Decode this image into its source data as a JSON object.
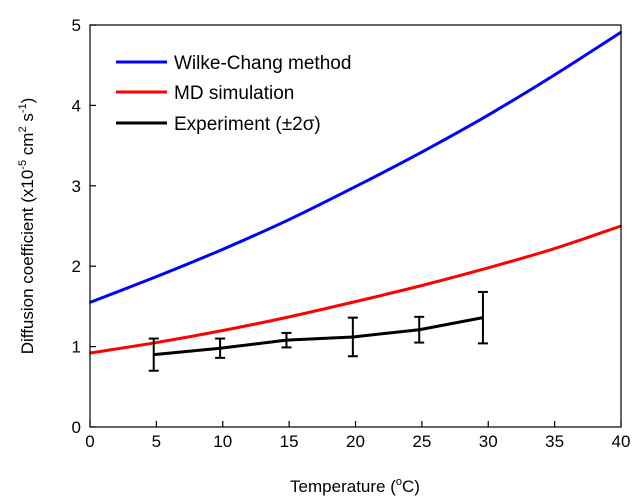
{
  "chart_data": {
    "type": "line",
    "title": "",
    "xlabel": {
      "pre": "Temperature (",
      "sup": "o",
      "post": "C)"
    },
    "ylabel": {
      "a": "Diffusion coefficient (x10",
      "sup1": "-5",
      "b": " cm",
      "sup2": "2",
      "c": " s",
      "sup3": "-1",
      "d": ")"
    },
    "xlim": [
      0,
      40
    ],
    "ylim": [
      0,
      5
    ],
    "xticks": [
      0,
      5,
      10,
      15,
      20,
      25,
      30,
      35,
      40
    ],
    "yticks": [
      0,
      1,
      2,
      3,
      4,
      5
    ],
    "legend_position": "top-left",
    "series": [
      {
        "name": "Wilke-Chang method",
        "color": "#0000ff",
        "x": [
          0,
          5,
          10,
          15,
          20,
          25,
          30,
          35,
          40
        ],
        "y": [
          1.55,
          1.87,
          2.21,
          2.58,
          2.99,
          3.42,
          3.88,
          4.38,
          4.91
        ]
      },
      {
        "name": "MD simulation",
        "color": "#ff0000",
        "x": [
          0,
          5,
          10,
          15,
          20,
          25,
          30,
          35,
          40
        ],
        "y": [
          0.92,
          1.05,
          1.2,
          1.37,
          1.56,
          1.76,
          1.98,
          2.22,
          2.5
        ]
      },
      {
        "name": "Experiment (±2σ)",
        "color": "#000000",
        "x": [
          4.8,
          9.8,
          14.8,
          19.8,
          24.8,
          29.6
        ],
        "y": [
          0.9,
          0.98,
          1.08,
          1.12,
          1.21,
          1.36
        ],
        "yerr": [
          0.2,
          0.12,
          0.09,
          0.24,
          0.16,
          0.32
        ]
      }
    ]
  }
}
